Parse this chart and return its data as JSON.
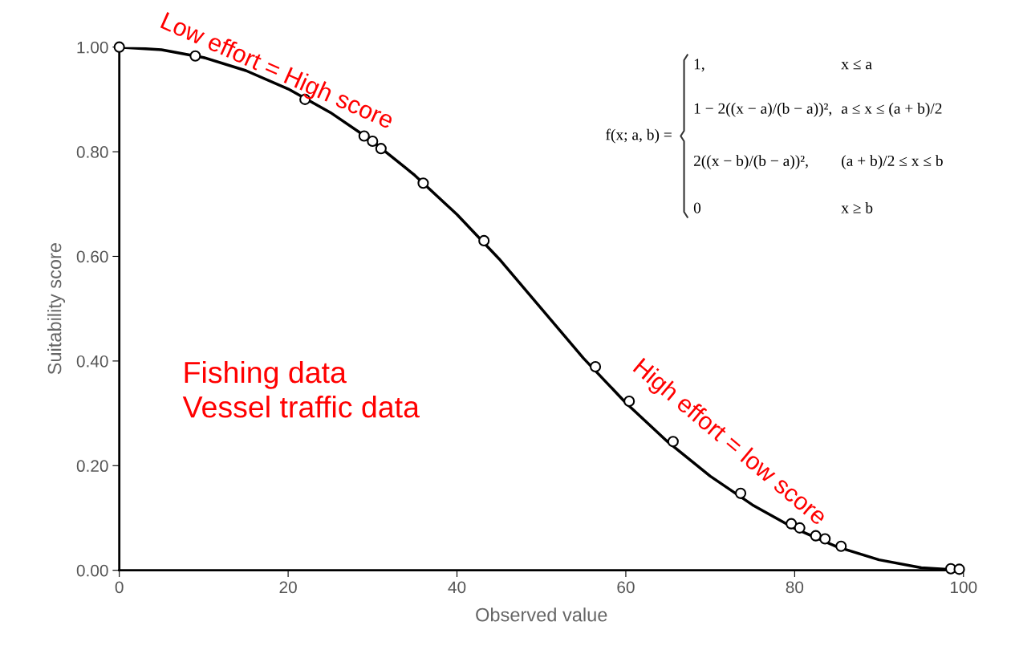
{
  "chart_data": {
    "type": "scatter",
    "xlabel": "Observed value",
    "ylabel": "Suitability score",
    "xlim": [
      0,
      100
    ],
    "ylim": [
      0,
      1
    ],
    "xticks": [
      0,
      20,
      40,
      60,
      80,
      100
    ],
    "yticks": [
      {
        "value": 0,
        "label": "0.00"
      },
      {
        "value": 0.2,
        "label": "0.20"
      },
      {
        "value": 0.4,
        "label": "0.40"
      },
      {
        "value": 0.6,
        "label": "0.60"
      },
      {
        "value": 0.8,
        "label": "0.80"
      },
      {
        "value": 1,
        "label": "1.00"
      }
    ],
    "grid": false,
    "legend": false,
    "series": [
      {
        "type": "line",
        "color": "#000000",
        "marker": "none",
        "line_style": "solid",
        "x": [
          0,
          5,
          10,
          15,
          20,
          25,
          30,
          35,
          40,
          45,
          50,
          55,
          60,
          65,
          70,
          75,
          80,
          85,
          90,
          95,
          100
        ],
        "values": [
          1.0,
          0.995,
          0.98,
          0.955,
          0.92,
          0.875,
          0.82,
          0.755,
          0.68,
          0.595,
          0.5,
          0.405,
          0.32,
          0.245,
          0.18,
          0.125,
          0.08,
          0.045,
          0.02,
          0.005,
          0.0
        ]
      },
      {
        "color": "#000000",
        "marker": "circle",
        "x": [
          0,
          9,
          22,
          29,
          30,
          31,
          36,
          43.2,
          56.4,
          60.4,
          65.6,
          73.6,
          79.6,
          80.6,
          82.5,
          83.6,
          85.5,
          98.5,
          99.5
        ],
        "values": [
          1.0,
          0.983,
          0.9,
          0.83,
          0.82,
          0.806,
          0.74,
          0.63,
          0.389,
          0.323,
          0.246,
          0.147,
          0.089,
          0.081,
          0.066,
          0.06,
          0.046,
          0.003,
          0.002
        ]
      }
    ],
    "annotations": [
      "Low effort = High score",
      "High effort = low score",
      "Fishing data\nVessel traffic data",
      "f(x; a, b) =",
      "1,",
      "x ≤ a",
      "1 − 2((x − a)/(b − a))²,",
      "a ≤ x ≤ (a + b)/2",
      "2((x − b)/(b − a))²,",
      "(a + b)/2 ≤ x ≤ b",
      "0",
      "x ≥ b"
    ]
  }
}
